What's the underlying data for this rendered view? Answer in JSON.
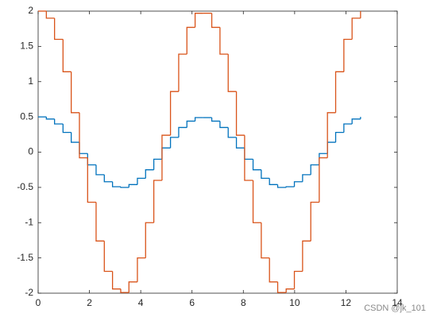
{
  "chart_data": {
    "type": "stairs",
    "x": [
      0,
      0.32,
      0.64,
      0.97,
      1.29,
      1.61,
      1.93,
      2.26,
      2.58,
      2.9,
      3.22,
      3.54,
      3.87,
      4.19,
      4.51,
      4.83,
      5.16,
      5.48,
      5.8,
      6.12,
      6.44,
      6.77,
      7.09,
      7.41,
      7.73,
      8.05,
      8.38,
      8.7,
      9.02,
      9.34,
      9.67,
      9.99,
      10.31,
      10.63,
      10.96,
      11.28,
      11.6,
      11.92,
      12.24,
      12.57
    ],
    "series": [
      {
        "color": "#0072bd",
        "values": [
          0.5,
          0.47,
          0.4,
          0.28,
          0.14,
          -0.02,
          -0.18,
          -0.32,
          -0.42,
          -0.49,
          -0.5,
          -0.46,
          -0.37,
          -0.25,
          -0.1,
          0.06,
          0.21,
          0.35,
          0.44,
          0.49,
          0.49,
          0.44,
          0.35,
          0.21,
          0.06,
          -0.1,
          -0.25,
          -0.37,
          -0.46,
          -0.5,
          -0.49,
          -0.42,
          -0.32,
          -0.18,
          -0.02,
          0.14,
          0.28,
          0.4,
          0.47,
          0.5
        ]
      },
      {
        "color": "#d95319",
        "values": [
          2,
          1.9,
          1.6,
          1.14,
          0.56,
          -0.08,
          -0.71,
          -1.26,
          -1.69,
          -1.94,
          -1.99,
          -1.84,
          -1.5,
          -1,
          -0.4,
          0.24,
          0.86,
          1.39,
          1.77,
          1.97,
          1.97,
          1.77,
          1.39,
          0.86,
          0.24,
          -0.4,
          -1,
          -1.5,
          -1.84,
          -1.99,
          -1.94,
          -1.69,
          -1.26,
          -0.71,
          -0.08,
          0.56,
          1.14,
          1.6,
          1.9,
          2
        ]
      }
    ],
    "xlim": [
      0,
      14
    ],
    "xticks": [
      0,
      2,
      4,
      6,
      8,
      10,
      12,
      14
    ],
    "ylim": [
      -2,
      2
    ],
    "yticks": [
      -2,
      -1.5,
      -1,
      -0.5,
      0,
      0.5,
      1,
      1.5,
      2
    ],
    "grid": false,
    "watermark": "CSDN @jk_101"
  }
}
